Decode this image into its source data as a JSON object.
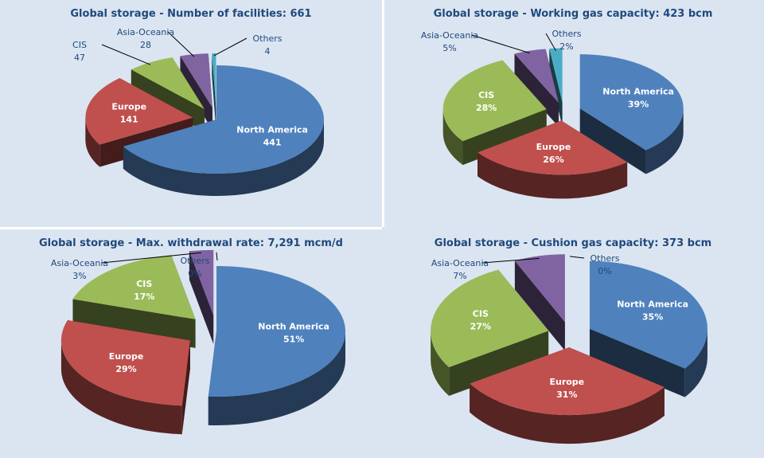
{
  "colors": {
    "North America": "#4f81bd",
    "Europe": "#c0504d",
    "CIS": "#9bbb59",
    "Asia-Oceania": "#8064a2",
    "Others": "#4bacc6",
    "title": "#1f497d",
    "background": "#dbe5f1"
  },
  "chart_data": [
    {
      "type": "pie",
      "title": "Global storage - Number of facilities: 661",
      "categories": [
        "North America",
        "Europe",
        "CIS",
        "Asia-Oceania",
        "Others"
      ],
      "values": [
        441,
        141,
        47,
        28,
        4
      ],
      "labels": [
        "441",
        "141",
        "47",
        "28",
        "4"
      ],
      "style": "3d-exploded"
    },
    {
      "type": "pie",
      "title": "Global storage - Working gas capacity: 423 bcm",
      "categories": [
        "North America",
        "Europe",
        "CIS",
        "Asia-Oceania",
        "Others"
      ],
      "values": [
        39,
        26,
        28,
        5,
        2
      ],
      "labels": [
        "39%",
        "26%",
        "28%",
        "5%",
        "2%"
      ],
      "style": "3d-exploded"
    },
    {
      "type": "pie",
      "title": "Global storage - Max. withdrawal rate: 7,291 mcm/d",
      "categories": [
        "North America",
        "Europe",
        "CIS",
        "Asia-Oceania",
        "Others"
      ],
      "values": [
        51,
        29,
        17,
        3,
        0
      ],
      "labels": [
        "51%",
        "29%",
        "17%",
        "3%",
        "0%"
      ],
      "style": "3d-exploded"
    },
    {
      "type": "pie",
      "title": "Global storage - Cushion gas capacity: 373 bcm",
      "categories": [
        "North America",
        "Europe",
        "CIS",
        "Asia-Oceania",
        "Others"
      ],
      "values": [
        35,
        31,
        27,
        7,
        0
      ],
      "labels": [
        "35%",
        "31%",
        "27%",
        "7%",
        "0%"
      ],
      "style": "3d-exploded"
    }
  ]
}
